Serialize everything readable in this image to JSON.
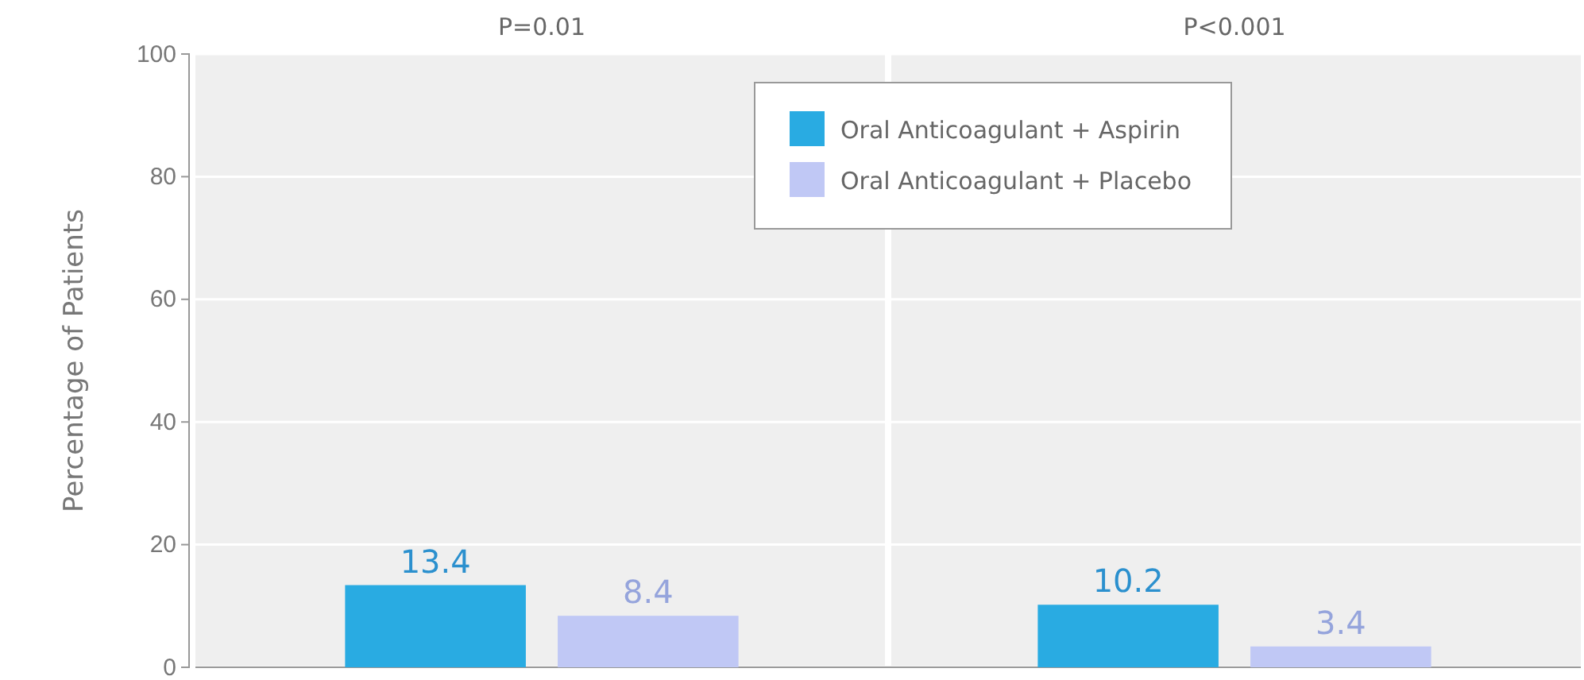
{
  "chart_data": {
    "type": "bar",
    "categories": [
      null,
      null
    ],
    "ylabel": "Percentage of Patients",
    "annotations": [
      "P=0.01",
      "P<0.001"
    ],
    "ylim": [
      0,
      100
    ],
    "yticks": [
      0,
      20,
      40,
      60,
      80,
      100
    ],
    "grid": "y",
    "data_labels": true,
    "legend": "top right",
    "series": [
      {
        "name": "Oral Anticoagulant + Aspirin",
        "color": "#29abe2",
        "values": [
          13.4,
          10.2
        ]
      },
      {
        "name": "Oral Anticoagulant + Placebo",
        "color": "#c0c8f5",
        "values": [
          8.4,
          3.4
        ]
      }
    ]
  }
}
